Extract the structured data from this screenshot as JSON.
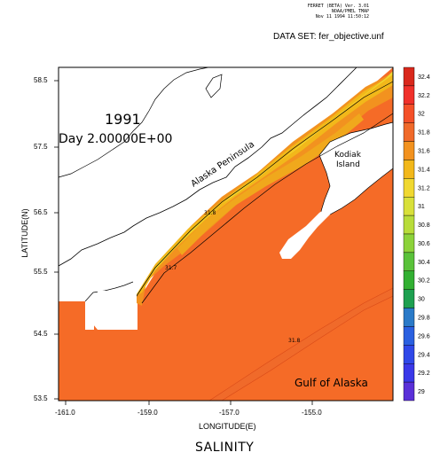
{
  "header": {
    "lines": [
      "FERRET (BETA) Ver. 3.01",
      "NOAA/PMEL TMAP",
      "Nov 11 1994 11:50:12"
    ],
    "dataset": "DATA SET: fer_objective.unf"
  },
  "plot": {
    "year": "1991",
    "day": "Day 2.00000E+00",
    "bottom_title": "SALINITY",
    "xlabel": "LONGITUDE(E)",
    "ylabel": "LATITUDE(N)",
    "xticks": [
      "-161.0",
      "-159.0",
      "-157.0",
      "-155.0"
    ],
    "yticks": [
      "58.5",
      "57.5",
      "56.5",
      "55.5",
      "54.5",
      "53.5"
    ]
  },
  "places": {
    "peninsula": "Alaska Peninsula",
    "kodiak_1": "Kodiak",
    "kodiak_2": "Island",
    "gulf": "Gulf of Alaska"
  },
  "contour_labels": [
    "31.8",
    "31.7",
    "31.8"
  ],
  "colorbar": {
    "levels": [
      "32.4",
      "32.2",
      "32",
      "31.8",
      "31.6",
      "31.4",
      "31.2",
      "31",
      "30.8",
      "30.6",
      "30.4",
      "30.2",
      "30",
      "29.8",
      "29.6",
      "29.4",
      "29.2",
      "29"
    ],
    "colors": [
      "#d9281c",
      "#f0302a",
      "#f45028",
      "#f06a2a",
      "#f2921f",
      "#f2b81a",
      "#f0d830",
      "#d8e03a",
      "#b8dc3a",
      "#8cd23a",
      "#5ac23a",
      "#32b032",
      "#1ea050",
      "#2a7ac8",
      "#2a60e0",
      "#2f48e8",
      "#3a38e8",
      "#5a30d8"
    ]
  },
  "colors": {
    "ocean": "#f56b27",
    "land": "#ffffff",
    "band_a": "#f2921f",
    "band_b": "#f2b81a",
    "band_c": "#f0d830"
  }
}
